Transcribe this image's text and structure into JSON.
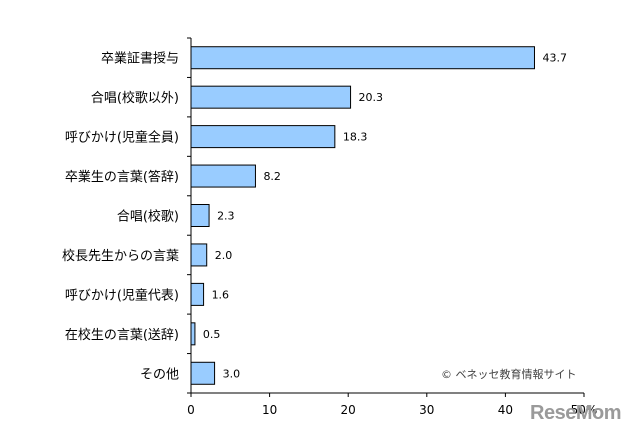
{
  "chart_data": {
    "type": "bar",
    "orientation": "horizontal",
    "categories": [
      "卒業証書授与",
      "合唱(校歌以外)",
      "呼びかけ(児童全員)",
      "卒業生の言葉(答辞)",
      "合唱(校歌)",
      "校長先生からの言葉",
      "呼びかけ(児童代表)",
      "在校生の言葉(送辞)",
      "その他"
    ],
    "values": [
      43.7,
      20.3,
      18.3,
      8.2,
      2.3,
      2.0,
      1.6,
      0.5,
      3.0
    ],
    "value_labels": [
      "43.7",
      "20.3",
      "18.3",
      "8.2",
      "2.3",
      "2.0",
      "1.6",
      "0.5",
      "3.0"
    ],
    "x_ticks": [
      0,
      10,
      20,
      30,
      40,
      50
    ],
    "x_tick_labels": [
      "0",
      "10",
      "20",
      "30",
      "40",
      "50%"
    ],
    "xlim": [
      0,
      50
    ],
    "grid": false,
    "bar_color": "#99ccff",
    "bar_border_color": "#000000"
  },
  "credit": "© ベネッセ教育情報サイト",
  "watermark": "ReseMom"
}
